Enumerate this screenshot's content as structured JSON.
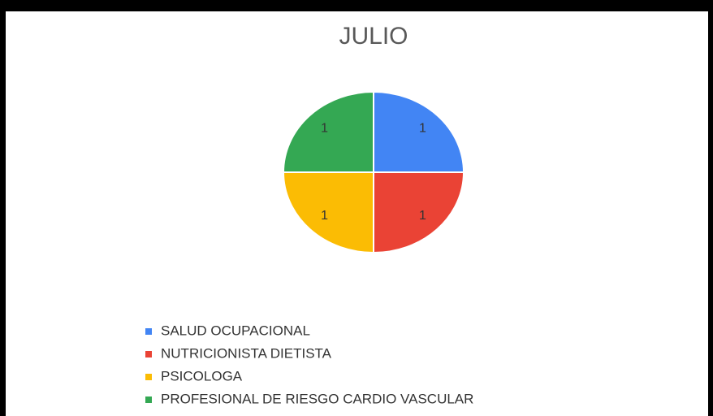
{
  "chart_data": {
    "type": "pie",
    "title": "JULIO",
    "categories": [
      "SALUD OCUPACIONAL",
      "NUTRICIONISTA DIETISTA",
      "PSICOLOGA",
      "PROFESIONAL DE RIESGO CARDIO VASCULAR"
    ],
    "values": [
      1,
      1,
      1,
      1
    ],
    "colors": [
      "#4285f4",
      "#ea4335",
      "#fbbc04",
      "#34a853"
    ]
  }
}
